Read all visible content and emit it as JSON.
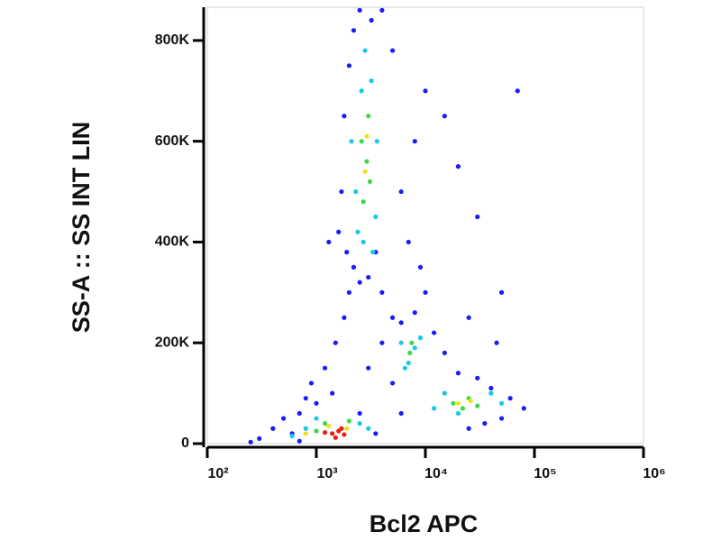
{
  "chart_data": {
    "type": "scatter",
    "x_label": "Bcl2 APC",
    "y_label": "SS-A :: SS INT LIN",
    "log_x": true,
    "xlim": [
      100,
      1000000
    ],
    "ylim": [
      0,
      866000
    ],
    "xticks": [
      {
        "value": 100,
        "label": "10²"
      },
      {
        "value": 1000,
        "label": "10³"
      },
      {
        "value": 10000,
        "label": "10⁴"
      },
      {
        "value": 100000,
        "label": "10⁵"
      },
      {
        "value": 1000000,
        "label": "10⁶"
      }
    ],
    "yticks": [
      0,
      {
        "value": 200000,
        "label": "200K"
      },
      {
        "value": 400000,
        "label": "400K"
      },
      {
        "value": 600000,
        "label": "600K"
      },
      {
        "value": 800000,
        "label": "800K"
      }
    ],
    "series": [
      {
        "color": "#1a1aff",
        "x": [
          300,
          400,
          500,
          600,
          700,
          800,
          900,
          1200,
          1500,
          1800,
          2000,
          2200,
          2500,
          3000,
          3500,
          4000,
          5000,
          6000,
          8000,
          10000,
          12000,
          15000,
          20000,
          30000,
          40000,
          60000,
          80000,
          50000,
          30000,
          20000,
          15000,
          10000,
          8000,
          6000,
          5000,
          4000,
          2500,
          2000,
          1800,
          1700,
          1600,
          2200,
          3200,
          7000,
          9000,
          25000,
          45000,
          70000,
          35000,
          50000,
          25000,
          700,
          250,
          1000,
          1400,
          3000,
          4000,
          5000,
          6000,
          3500,
          2500,
          1300,
          1900
        ],
        "y": [
          10000,
          30000,
          50000,
          20000,
          60000,
          90000,
          120000,
          150000,
          200000,
          250000,
          300000,
          350000,
          320000,
          330000,
          380000,
          300000,
          250000,
          240000,
          260000,
          300000,
          220000,
          180000,
          140000,
          130000,
          110000,
          90000,
          70000,
          300000,
          450000,
          550000,
          650000,
          700000,
          600000,
          500000,
          780000,
          860000,
          860000,
          750000,
          650000,
          500000,
          420000,
          820000,
          840000,
          400000,
          350000,
          250000,
          200000,
          700000,
          40000,
          50000,
          30000,
          5000,
          3000,
          80000,
          100000,
          150000,
          200000,
          120000,
          60000,
          20000,
          60000,
          400000,
          380000
        ]
      },
      {
        "color": "#18c8e8",
        "x": [
          2300,
          2600,
          3200,
          3600,
          2400,
          3500,
          2800,
          2700,
          6000,
          7000,
          8000,
          6500,
          9000,
          15000,
          20000,
          40000,
          50000,
          12000,
          800,
          1000,
          2500,
          3000,
          600,
          2100,
          3300
        ],
        "y": [
          500000,
          700000,
          720000,
          600000,
          420000,
          450000,
          780000,
          400000,
          200000,
          160000,
          190000,
          150000,
          210000,
          100000,
          60000,
          100000,
          80000,
          70000,
          30000,
          50000,
          40000,
          30000,
          15000,
          600000,
          380000
        ]
      },
      {
        "color": "#3fd84a",
        "x": [
          2700,
          2900,
          3000,
          2600,
          3100,
          7200,
          7500,
          18000,
          25000,
          30000,
          22000,
          1200,
          2000,
          1000
        ],
        "y": [
          480000,
          560000,
          650000,
          600000,
          520000,
          180000,
          200000,
          80000,
          90000,
          75000,
          70000,
          40000,
          45000,
          25000
        ]
      },
      {
        "color": "#f2e21a",
        "x": [
          2800,
          2900,
          26000,
          20000,
          1300,
          1900,
          800
        ],
        "y": [
          540000,
          610000,
          85000,
          80000,
          35000,
          30000,
          20000
        ]
      },
      {
        "color": "#e82010",
        "x": [
          1400,
          1600,
          1800,
          1500,
          1700,
          1200
        ],
        "y": [
          20000,
          25000,
          18000,
          12000,
          30000,
          22000
        ]
      }
    ]
  }
}
